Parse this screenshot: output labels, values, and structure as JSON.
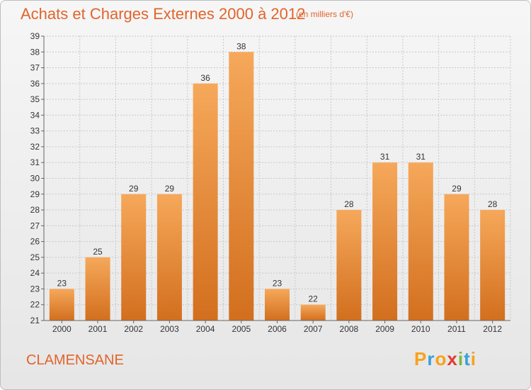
{
  "header": {
    "title": "Achats et Charges Externes 2000 à 2012",
    "subtitle": "(en milliers d'€)"
  },
  "footer": {
    "commune": "CLAMENSANE",
    "brand": {
      "letters": [
        "P",
        "r",
        "o",
        "x",
        "i",
        "t",
        "i"
      ],
      "colors": [
        "#f7a21b",
        "#3aa0d8",
        "#f7a21b",
        "#e33b2e",
        "#7bb83a",
        "#3aa0d8",
        "#f7a21b"
      ]
    }
  },
  "colors": {
    "bar_top": "#f6a85a",
    "bar_bottom": "#d26f1e",
    "grid": "#c8c8c8",
    "text_accent": "#e2642b"
  },
  "chart_data": {
    "type": "bar",
    "title": "Achats et Charges Externes 2000 à 2012",
    "subtitle": "(en milliers d'€)",
    "categories": [
      "2000",
      "2001",
      "2002",
      "2003",
      "2004",
      "2005",
      "2006",
      "2007",
      "2008",
      "2009",
      "2010",
      "2011",
      "2012"
    ],
    "values": [
      23,
      25,
      29,
      29,
      36,
      38,
      23,
      22,
      28,
      31,
      31,
      29,
      28
    ],
    "ylim": [
      21,
      39
    ],
    "yticks": [
      21,
      22,
      23,
      24,
      25,
      26,
      27,
      28,
      29,
      30,
      31,
      32,
      33,
      34,
      35,
      36,
      37,
      38,
      39
    ],
    "grid": true,
    "data_labels": true
  }
}
